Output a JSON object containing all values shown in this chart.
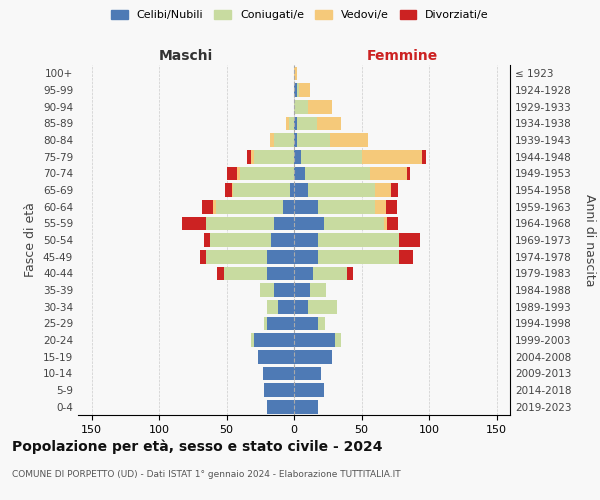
{
  "age_groups": [
    "0-4",
    "5-9",
    "10-14",
    "15-19",
    "20-24",
    "25-29",
    "30-34",
    "35-39",
    "40-44",
    "45-49",
    "50-54",
    "55-59",
    "60-64",
    "65-69",
    "70-74",
    "75-79",
    "80-84",
    "85-89",
    "90-94",
    "95-99",
    "100+"
  ],
  "birth_years": [
    "2019-2023",
    "2014-2018",
    "2009-2013",
    "2004-2008",
    "1999-2003",
    "1994-1998",
    "1989-1993",
    "1984-1988",
    "1979-1983",
    "1974-1978",
    "1969-1973",
    "1964-1968",
    "1959-1963",
    "1954-1958",
    "1949-1953",
    "1944-1948",
    "1939-1943",
    "1934-1938",
    "1929-1933",
    "1924-1928",
    "≤ 1923"
  ],
  "colors": {
    "celibi": "#4e7ab5",
    "coniugati": "#c8dba0",
    "vedovi": "#f5c97a",
    "divorziati": "#cc2222"
  },
  "males": {
    "celibi": [
      20,
      22,
      23,
      27,
      30,
      20,
      12,
      15,
      20,
      20,
      17,
      15,
      8,
      3,
      0,
      0,
      0,
      0,
      0,
      0,
      0
    ],
    "coniugati": [
      0,
      0,
      0,
      0,
      2,
      2,
      8,
      10,
      32,
      45,
      45,
      50,
      50,
      42,
      40,
      30,
      15,
      4,
      0,
      0,
      0
    ],
    "vedovi": [
      0,
      0,
      0,
      0,
      0,
      0,
      0,
      0,
      0,
      0,
      0,
      0,
      2,
      1,
      2,
      2,
      3,
      2,
      0,
      0,
      0
    ],
    "divorziati": [
      0,
      0,
      0,
      0,
      0,
      0,
      0,
      0,
      5,
      5,
      5,
      18,
      8,
      5,
      8,
      3,
      0,
      0,
      0,
      0,
      0
    ]
  },
  "females": {
    "celibi": [
      18,
      22,
      20,
      28,
      30,
      18,
      10,
      12,
      14,
      18,
      18,
      22,
      18,
      10,
      8,
      5,
      2,
      2,
      0,
      2,
      0
    ],
    "coniugati": [
      0,
      0,
      0,
      0,
      5,
      5,
      22,
      12,
      25,
      60,
      60,
      45,
      42,
      50,
      48,
      45,
      25,
      15,
      10,
      2,
      0
    ],
    "vedovi": [
      0,
      0,
      0,
      0,
      0,
      0,
      0,
      0,
      0,
      0,
      0,
      2,
      8,
      12,
      28,
      45,
      28,
      18,
      18,
      8,
      2
    ],
    "divorziati": [
      0,
      0,
      0,
      0,
      0,
      0,
      0,
      0,
      5,
      10,
      15,
      8,
      8,
      5,
      2,
      3,
      0,
      0,
      0,
      0,
      0
    ]
  },
  "title": "Popolazione per età, sesso e stato civile - 2024",
  "subtitle": "COMUNE DI PORPETTO (UD) - Dati ISTAT 1° gennaio 2024 - Elaborazione TUTTITALIA.IT",
  "xlabel_left": "Maschi",
  "xlabel_right": "Femmine",
  "ylabel_left": "Fasce di età",
  "ylabel_right": "Anni di nascita",
  "xlim": 160,
  "legend_labels": [
    "Celibi/Nubili",
    "Coniugati/e",
    "Vedovi/e",
    "Divorziati/e"
  ],
  "background_color": "#f8f8f8"
}
